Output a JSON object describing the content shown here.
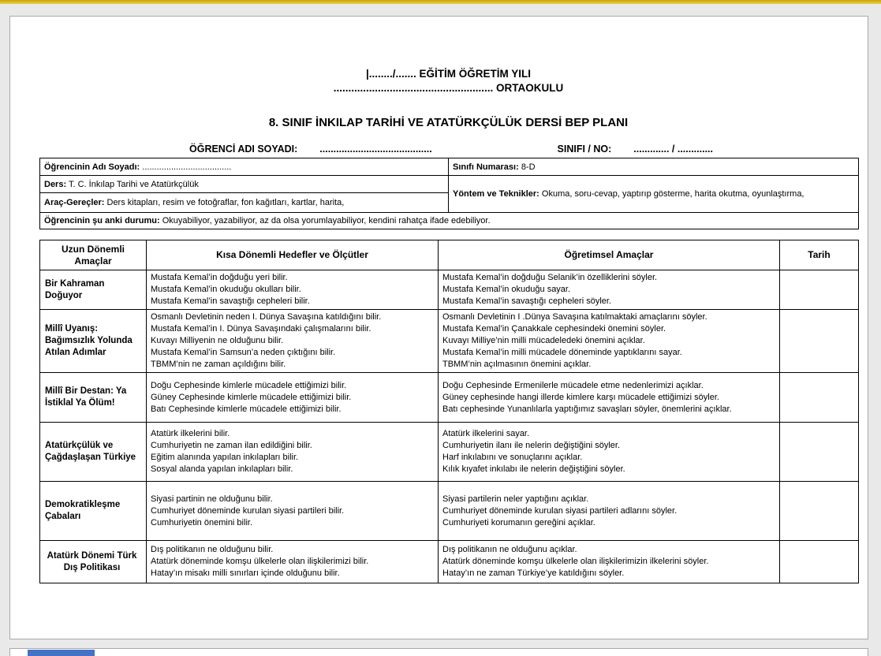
{
  "colors": {
    "top_bar_dark": "#c9a40e",
    "top_bar_light": "#e9d043",
    "next_page_bar": "#4472c4"
  },
  "header": {
    "year_line": "|......../....... EĞİTİM ÖĞRETİM YILI",
    "school_line": "...................................................... ORTAOKULU",
    "title": "8. SINIF İNKILAP TARİHİ VE ATATÜRKÇÜLÜK DERSİ BEP PLANI",
    "student_label": "ÖĞRENCİ ADI SOYADI:",
    "student_dots": ".........................................",
    "class_label": "SINIFI / NO:",
    "class_dots": ".............   /   ............."
  },
  "info_table": {
    "student_name": {
      "label": "Öğrencinin Adı Soyadı:",
      "value": "....................................."
    },
    "class_number": {
      "label": "Sınıfı Numarası:",
      "value": "8-D"
    },
    "course": {
      "label": "Ders:",
      "value": "T. C. İnkılap Tarihi ve Atatürkçülük"
    },
    "methods": {
      "label": "Yöntem ve Teknikler:",
      "value": "Okuma, soru-cevap, yaptırıp gösterme, harita okutma, oyunlaştırma,"
    },
    "materials": {
      "label": "Araç-Gereçler:",
      "value": "Ders kitapları, resim ve fotoğraflar, fon kağıtları, kartlar, harita,"
    },
    "current_status": {
      "label": "Öğrencinin şu anki durumu:",
      "value": "Okuyabiliyor, yazabiliyor, az da olsa yorumlayabiliyor, kendini rahatça ifade edebiliyor."
    }
  },
  "main_table": {
    "headers": [
      "Uzun Dönemli Amaçlar",
      "Kısa Dönemli Hedefler ve Ölçütler",
      "Öğretimsel Amaçlar",
      "Tarih"
    ],
    "rows": [
      {
        "goal": "Bir Kahraman Doğuyor",
        "objectives": [
          "Mustafa Kemal’in doğduğu yeri bilir.",
          "Mustafa Kemal’in okuduğu okulları bilir.",
          "Mustafa Kemal’in savaştığı cepheleri bilir."
        ],
        "aims": [
          "Mustafa Kemal’in doğduğu Selanik’in özelliklerini söyler.",
          "Mustafa Kemal’in okuduğu sayar.",
          "Mustafa Kemal’in savaştığı cepheleri söyler."
        ],
        "date": ""
      },
      {
        "goal": "Millî Uyanış: Bağımsızlık Yolunda Atılan Adımlar",
        "objectives": [
          "Osmanlı Devletinin neden I. Dünya Savaşına katıldığını bilir.",
          "Mustafa Kemal’in I. Dünya Savaşındaki çalışmalarını bilir.",
          "Kuvayı Milliyenin ne olduğunu bilir.",
          "Mustafa Kemal’in Samsun’a neden çıktığını bilir.",
          "TBMM’nin ne zaman açıldığını bilir."
        ],
        "aims": [
          "Osmanlı Devletinin I .Dünya Savaşına katılmaktaki amaçlarını söyler.",
          "Mustafa Kemal’in Çanakkale cephesindeki önemini söyler.",
          "Kuvayı Milliye’nin milli mücadeledeki önemini açıklar.",
          "Mustafa Kemal’in milli mücadele döneminde yaptıklarını sayar.",
          "TBMM’nin açılmasının önemini açıklar."
        ],
        "date": ""
      },
      {
        "goal": "Millî Bir Destan: Ya İstiklal Ya Ölüm!",
        "objectives": [
          "Doğu Cephesinde kimlerle mücadele ettiğimizi bilir.",
          "Güney Cephesinde kimlerle mücadele ettiğimizi bilir.",
          "Batı Cephesinde kimlerle mücadele ettiğimizi bilir."
        ],
        "aims": [
          "Doğu Cephesinde Ermenilerle mücadele etme nedenlerimizi açıklar.",
          "Güney cephesinde hangi illerde kimlere karşı mücadele ettiğimizi söyler.",
          "Batı cephesinde Yunanlılarla yaptığımız savaşları söyler, önemlerini açıklar."
        ],
        "date": ""
      },
      {
        "goal": "Atatürkçülük ve Çağdaşlaşan Türkiye",
        "objectives": [
          "Atatürk ilkelerini bilir.",
          "Cumhuriyetin ne zaman ilan edildiğini bilir.",
          "Eğitim alanında yapılan inkılapları bilir.",
          "Sosyal alanda yapılan inkılapları bilir."
        ],
        "aims": [
          "Atatürk ilkelerini sayar.",
          "Cumhuriyetin ilanı ile nelerin değiştiğini söyler.",
          "Harf inkılabını ve sonuçlarını açıklar.",
          "Kılık kıyafet inkılabı ile nelerin değiştiğini söyler."
        ],
        "date": ""
      },
      {
        "goal": "Demokratikleşme Çabaları",
        "objectives": [
          "Siyasi partinin ne olduğunu bilir.",
          "Cumhuriyet döneminde kurulan siyasi partileri bilir.",
          "Cumhuriyetin önemini bilir."
        ],
        "aims": [
          "Siyasi partilerin neler yaptığını açıklar.",
          "Cumhuriyet döneminde kurulan siyasi partileri adlarını söyler.",
          "Cumhuriyeti korumanın gereğini açıklar."
        ],
        "date": ""
      },
      {
        "goal": "Atatürk Dönemi Türk Dış Politikası",
        "objectives": [
          "Dış politikanın ne olduğunu bilir.",
          "Atatürk döneminde komşu ülkelerle olan ilişkilerimizi bilir.",
          "Hatay’ın misakı milli sınırları içinde olduğunu bilir."
        ],
        "aims": [
          "Dış politikanın ne olduğunu açıklar.",
          "Atatürk döneminde komşu ülkelerle olan ilişkilerimizin ilkelerini söyler.",
          "Hatay’ın ne zaman Türkiye’ye katıldığını söyler."
        ],
        "date": ""
      }
    ]
  }
}
